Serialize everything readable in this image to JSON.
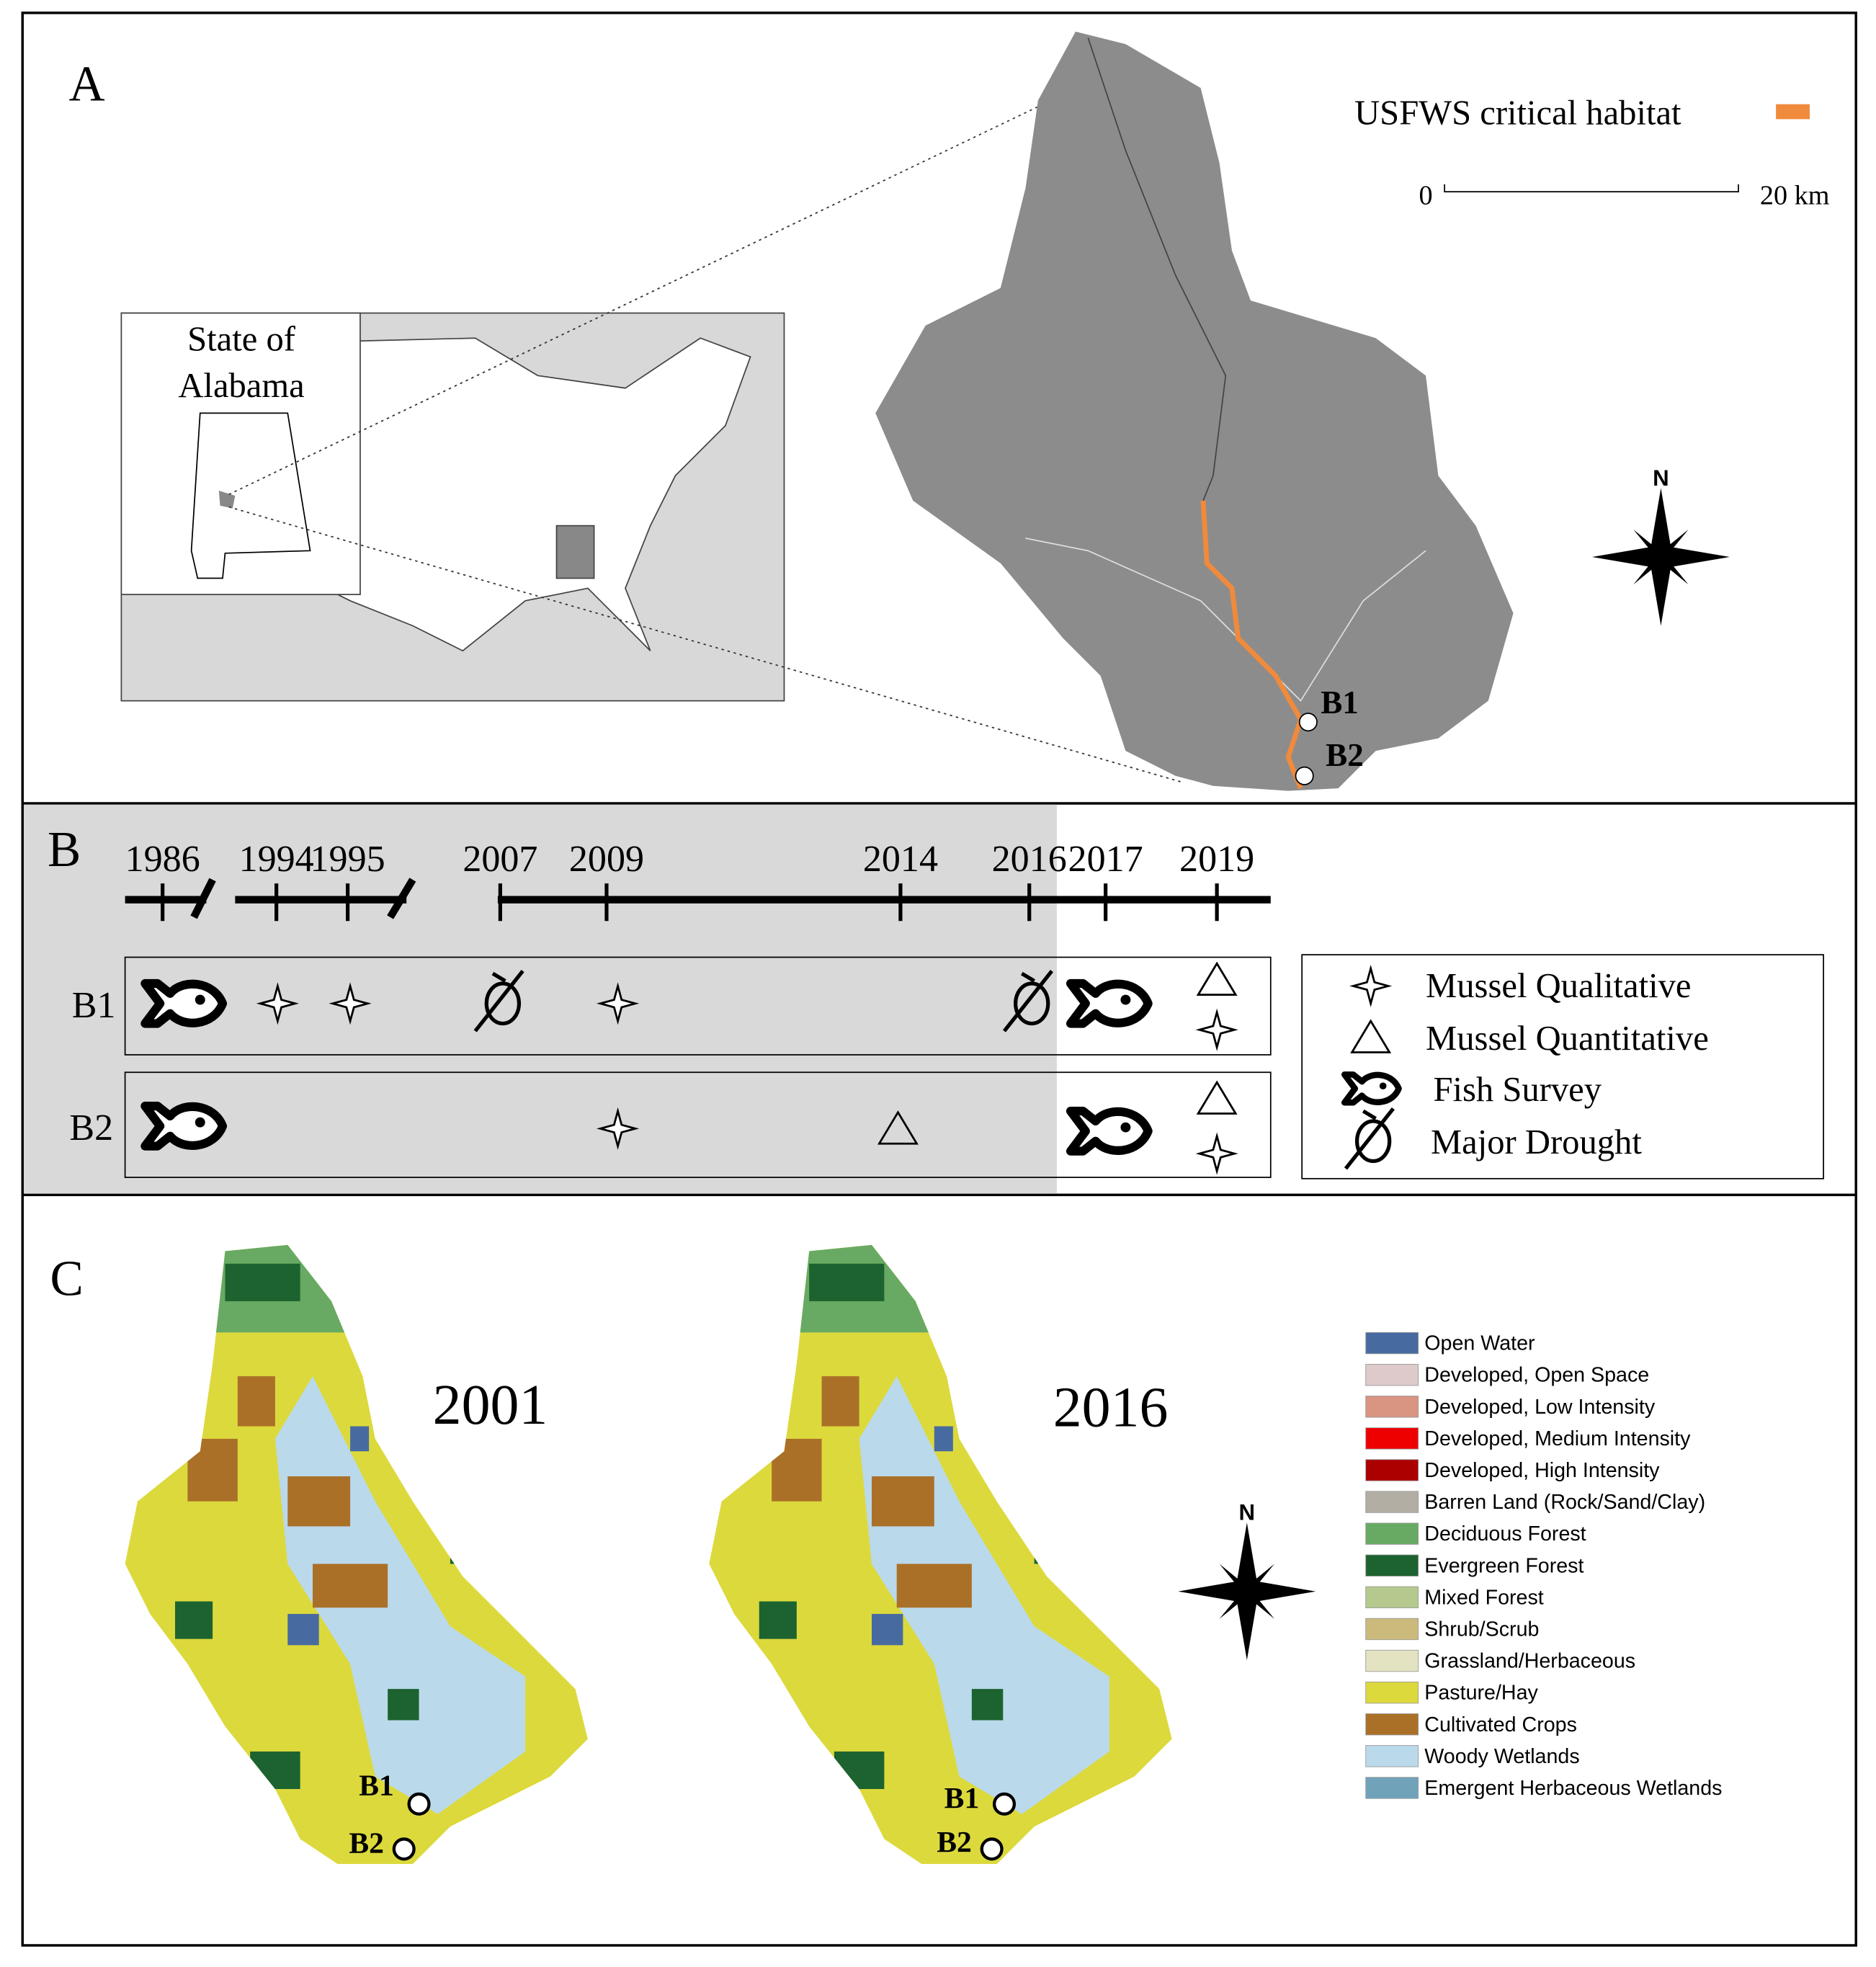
{
  "panel_a": {
    "label": "A",
    "legend": "USFWS critical habitat",
    "legend_color": "#f08a3c",
    "scale_bar": [
      "0",
      "20 km"
    ],
    "inset_title": [
      "State of",
      "Alabama"
    ],
    "north": "N",
    "sites": [
      "B1",
      "B2"
    ]
  },
  "panel_b": {
    "label": "B",
    "years": [
      "1986",
      "1994",
      "1995",
      "2007",
      "2009",
      "2014",
      "2016",
      "2017",
      "2019"
    ],
    "rows": [
      "B1",
      "B2"
    ],
    "legend": [
      "Mussel Qualitative",
      "Mussel Quantitative",
      "Fish Survey",
      "Major Drought"
    ]
  },
  "panel_c": {
    "label": "C",
    "maps": [
      "2001",
      "2016"
    ],
    "north": "N",
    "sites": [
      "B1",
      "B2"
    ],
    "legend": [
      {
        "name": "Open Water",
        "color": "#476ba1"
      },
      {
        "name": "Developed, Open Space",
        "color": "#decaca"
      },
      {
        "name": "Developed, Low Intensity",
        "color": "#d99482"
      },
      {
        "name": "Developed, Medium Intensity",
        "color": "#ee0000"
      },
      {
        "name": "Developed, High Intensity",
        "color": "#ab0000"
      },
      {
        "name": "Barren Land (Rock/Sand/Clay)",
        "color": "#b3aea3"
      },
      {
        "name": "Deciduous Forest",
        "color": "#68aa63"
      },
      {
        "name": "Evergreen Forest",
        "color": "#1c6330"
      },
      {
        "name": "Mixed Forest",
        "color": "#b5c98e"
      },
      {
        "name": "Shrub/Scrub",
        "color": "#ccba7d"
      },
      {
        "name": "Grassland/Herbaceous",
        "color": "#e3e3c2"
      },
      {
        "name": "Pasture/Hay",
        "color": "#dcd93d"
      },
      {
        "name": "Cultivated Crops",
        "color": "#ab7028"
      },
      {
        "name": "Woody Wetlands",
        "color": "#bad9eb"
      },
      {
        "name": "Emergent Herbaceous Wetlands",
        "color": "#70a3ba"
      }
    ]
  }
}
